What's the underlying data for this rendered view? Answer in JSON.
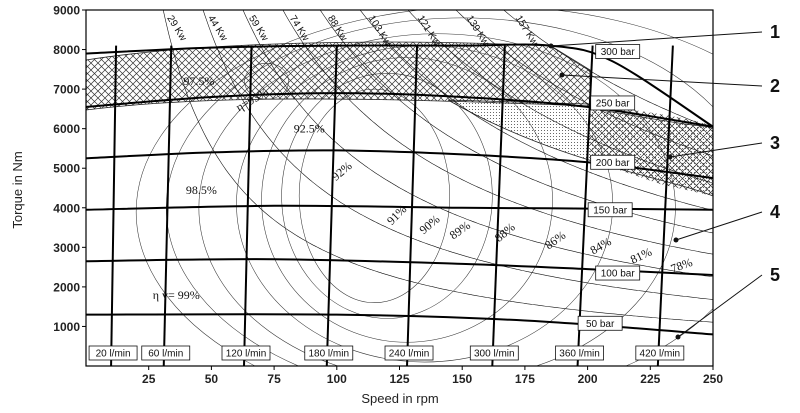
{
  "chart_data": {
    "type": "line",
    "xlabel": "Speed in rpm",
    "ylabel": "Torque in Nm",
    "xlim": [
      0,
      250
    ],
    "ylim": [
      0,
      9000
    ],
    "x_ticks": [
      25,
      50,
      75,
      100,
      125,
      150,
      175,
      200,
      225,
      250
    ],
    "y_ticks": [
      1000,
      2000,
      3000,
      4000,
      5000,
      6000,
      7000,
      8000,
      9000
    ],
    "grid": false,
    "pressure_lines": [
      {
        "label": "50 bar",
        "points": [
          [
            0,
            1300
          ],
          [
            100,
            1300
          ],
          [
            175,
            1150
          ],
          [
            250,
            800
          ]
        ]
      },
      {
        "label": "100 bar",
        "points": [
          [
            0,
            2650
          ],
          [
            75,
            2700
          ],
          [
            150,
            2580
          ],
          [
            200,
            2450
          ],
          [
            250,
            2300
          ]
        ]
      },
      {
        "label": "150 bar",
        "points": [
          [
            0,
            3950
          ],
          [
            75,
            4050
          ],
          [
            150,
            4000
          ],
          [
            200,
            3980
          ],
          [
            250,
            3950
          ]
        ]
      },
      {
        "label": "200 bar",
        "points": [
          [
            0,
            5250
          ],
          [
            50,
            5400
          ],
          [
            100,
            5450
          ],
          [
            150,
            5350
          ],
          [
            200,
            5150
          ],
          [
            250,
            4750
          ]
        ]
      },
      {
        "label": "250 bar",
        "points": [
          [
            0,
            6550
          ],
          [
            50,
            6800
          ],
          [
            100,
            6900
          ],
          [
            150,
            6800
          ],
          [
            200,
            6550
          ],
          [
            250,
            6050
          ]
        ]
      },
      {
        "label": "300 bar",
        "points": [
          [
            0,
            7900
          ],
          [
            50,
            8050
          ],
          [
            100,
            8100
          ],
          [
            150,
            8100
          ],
          [
            185,
            8100
          ],
          [
            210,
            7700
          ],
          [
            250,
            6050
          ]
        ]
      }
    ],
    "flow_lines": [
      {
        "label": "20 l/min",
        "x": [
          10,
          12
        ]
      },
      {
        "label": "60 l/min",
        "x": [
          31,
          34
        ]
      },
      {
        "label": "120 l/min",
        "x": [
          63,
          66
        ]
      },
      {
        "label": "180 l/min",
        "x": [
          96,
          100
        ]
      },
      {
        "label": "240 l/min",
        "x": [
          128,
          132
        ]
      },
      {
        "label": "300 l/min",
        "x": [
          162,
          167
        ]
      },
      {
        "label": "360 l/min",
        "x": [
          196,
          202
        ]
      },
      {
        "label": "420 l/min",
        "x": [
          228,
          234
        ]
      }
    ],
    "power_labels": [
      "29 Kw",
      "44 Kw",
      "59 Kw",
      "74 Kw",
      "88 Kw",
      "103 Kw",
      "121 Kw",
      "139 Kw",
      "157 Kw"
    ],
    "power_kw": [
      29,
      44,
      59,
      74,
      88,
      103,
      121,
      139,
      157
    ],
    "efficiency_labels": [
      "97.5%",
      "η=93%",
      "92.5%",
      "98.5%",
      "92%",
      "91%",
      "90%",
      "89%",
      "88%",
      "86%",
      "84%",
      "81%",
      "78%",
      "η v= 99%"
    ],
    "callouts": [
      "1",
      "2",
      "3",
      "4",
      "5"
    ]
  }
}
